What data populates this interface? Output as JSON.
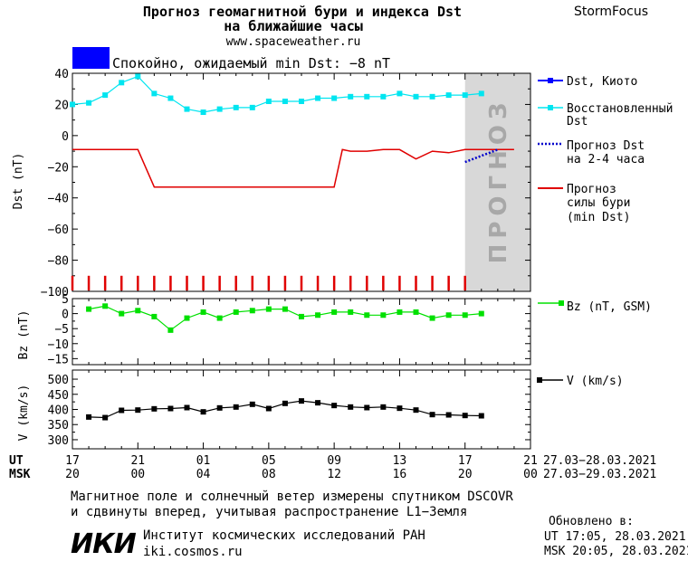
{
  "header": {
    "title_line1": "Прогноз геомагнитной бури и индекса Dst",
    "title_line2": "на ближайшие часы",
    "site": "www.spaceweather.ru",
    "brand": "StormFocus"
  },
  "status": {
    "text": "Спокойно, ожидаемый min Dst: −8 nT",
    "color": "#0000ff"
  },
  "forecast_label": "ПРОГНОЗ",
  "legend": {
    "kyoto": "Dst, Киото",
    "restored_1": "Восстановленный",
    "restored_2": "Dst",
    "forecast_1": "Прогноз Dst",
    "forecast_2": "на 2-4 часа",
    "storm_1": "Прогноз",
    "storm_2": "силы бури",
    "storm_3": "(min Dst)",
    "bz": "Bz (nT, GSM)",
    "v": "V (km/s)"
  },
  "colors": {
    "restored": "#00e5f0",
    "storm": "#e00000",
    "forecast": "#0000cc",
    "bz": "#00e000",
    "v": "#000000",
    "kyoto": "#0000ff",
    "forecast_bg": "#d8d8d8",
    "forecast_text": "#a8a8a8"
  },
  "time_axis": {
    "ut_label": "UT",
    "msk_label": "MSK",
    "ut_ticks": [
      "17",
      "21",
      "01",
      "05",
      "09",
      "13",
      "17",
      "21"
    ],
    "msk_ticks": [
      "20",
      "00",
      "04",
      "08",
      "12",
      "16",
      "20",
      "00"
    ],
    "ut_range": "27.03−28.03.2021",
    "msk_range": "27.03−29.03.2021"
  },
  "chart_data": [
    {
      "type": "line",
      "title": "",
      "ylabel": "Dst (nT)",
      "ylim": [
        -100,
        40
      ],
      "yticks": [
        "40",
        "20",
        "0",
        "−20",
        "−40",
        "−60",
        "−80",
        "−100"
      ],
      "x_hours": [
        0,
        1,
        2,
        3,
        4,
        5,
        6,
        7,
        8,
        9,
        10,
        11,
        12,
        13,
        14,
        15,
        16,
        17,
        18,
        19,
        20,
        21,
        22,
        23,
        24,
        25
      ],
      "series": [
        {
          "name": "Восстановленный Dst",
          "x": [
            0,
            1,
            2,
            3,
            4,
            5,
            6,
            7,
            8,
            9,
            10,
            11,
            12,
            13,
            14,
            15,
            16,
            17,
            18,
            19,
            20,
            21,
            22,
            23,
            24,
            25
          ],
          "values": [
            20,
            21,
            26,
            34,
            38,
            27,
            24,
            17,
            15,
            17,
            18,
            18,
            22,
            22,
            22,
            24,
            24,
            25,
            25,
            25,
            27,
            25,
            25,
            26,
            26,
            27
          ]
        },
        {
          "name": "Прогноз силы бури (min Dst)",
          "x": [
            0,
            4,
            5,
            16,
            16.5,
            17,
            18,
            19,
            20,
            21,
            22,
            23,
            24,
            25,
            27
          ],
          "values": [
            -9,
            -9,
            -33,
            -33,
            -9,
            -10,
            -10,
            -9,
            -9,
            -15,
            -10,
            -11,
            -9,
            -9,
            -9
          ]
        },
        {
          "name": "Прогноз Dst на 2-4 часа",
          "x": [
            24,
            26
          ],
          "values": [
            -17,
            -9
          ]
        }
      ],
      "forecast_region_hours": [
        24,
        28
      ]
    },
    {
      "type": "line",
      "ylabel": "Bz (nT)",
      "ylim": [
        -17,
        5
      ],
      "yticks": [
        "5",
        "0",
        "−5",
        "−10",
        "−15"
      ],
      "series": [
        {
          "name": "Bz (nT, GSM)",
          "x": [
            1,
            2,
            3,
            4,
            5,
            6,
            7,
            8,
            9,
            10,
            11,
            12,
            13,
            14,
            15,
            16,
            17,
            18,
            19,
            20,
            21,
            22,
            23,
            24,
            25
          ],
          "values": [
            1.5,
            2.5,
            0,
            1,
            -1,
            -5.5,
            -1.5,
            0.5,
            -1.5,
            0.5,
            1,
            1.5,
            1.5,
            -1,
            -0.5,
            0.5,
            0.5,
            -0.5,
            -0.5,
            0.5,
            0.5,
            -1.5,
            -0.5,
            -0.5,
            0
          ]
        }
      ]
    },
    {
      "type": "line",
      "ylabel": "V (km/s)",
      "ylim": [
        270,
        530
      ],
      "yticks": [
        "500",
        "450",
        "400",
        "350",
        "300"
      ],
      "series": [
        {
          "name": "V (km/s)",
          "x": [
            1,
            2,
            3,
            4,
            5,
            6,
            7,
            8,
            9,
            10,
            11,
            12,
            13,
            14,
            15,
            16,
            17,
            18,
            19,
            20,
            21,
            22,
            23,
            24,
            25
          ],
          "values": [
            375,
            373,
            397,
            398,
            402,
            403,
            406,
            392,
            405,
            408,
            417,
            403,
            420,
            428,
            422,
            413,
            408,
            406,
            408,
            404,
            398,
            383,
            382,
            380,
            379
          ]
        }
      ]
    }
  ],
  "footer": {
    "note_1": "Магнитное поле и солнечный ветер измерены спутником DSCOVR",
    "note_2": "и сдвинуты вперед, учитывая распространение L1−Земля",
    "org": "Институт космических исследований РАН",
    "org_url": "iki.cosmos.ru",
    "logo": "ИКИ",
    "updated_label": "Обновлено в:",
    "updated_ut": "UT  17:05, 28.03.2021",
    "updated_msk": "MSK 20:05, 28.03.2021"
  }
}
